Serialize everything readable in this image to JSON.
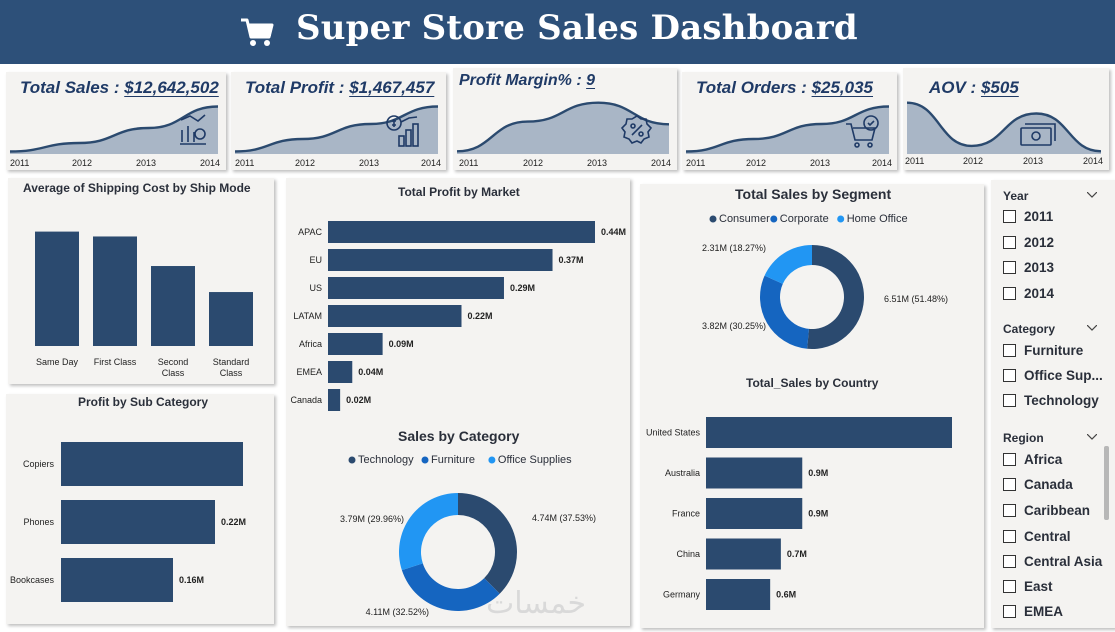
{
  "header": {
    "title": "Super Store Sales Dashboard"
  },
  "kpis": [
    {
      "label": "Total Sales : ",
      "value": "$12,642,502",
      "icon": "money-growth-icon",
      "years": [
        "2011",
        "2012",
        "2013",
        "2014"
      ],
      "trend": [
        0.05,
        0.22,
        0.52,
        0.95
      ]
    },
    {
      "label": "Total Profit : ",
      "value": "$1,467,457",
      "icon": "profit-chart-icon",
      "years": [
        "2011",
        "2012",
        "2013",
        "2014"
      ],
      "trend": [
        0.05,
        0.3,
        0.6,
        0.95
      ]
    },
    {
      "label": "Profit Margin% : ",
      "value": "9",
      "icon": "percent-badge-icon",
      "years": [
        "2011",
        "2012",
        "2013",
        "2014"
      ],
      "trend": [
        0.05,
        0.6,
        0.95,
        0.55
      ]
    },
    {
      "label": "Total Orders : ",
      "value": "$25,035",
      "icon": "cart-check-icon",
      "years": [
        "2011",
        "2012",
        "2013",
        "2014"
      ],
      "trend": [
        0.05,
        0.3,
        0.6,
        0.95
      ]
    },
    {
      "label": "AOV : ",
      "value": "$505",
      "icon": "cash-icon",
      "years": [
        "2011",
        "2012",
        "2013",
        "2014"
      ],
      "trend": [
        0.95,
        0.15,
        0.75,
        0.05
      ]
    }
  ],
  "chart_data": [
    {
      "id": "shipping",
      "type": "bar",
      "title": "Average of Shipping Cost by Ship Mode",
      "categories": [
        "Same Day",
        "First Class",
        "Second Class",
        "Standard Class"
      ],
      "category_lines": [
        [
          "Same Day"
        ],
        [
          "First Class"
        ],
        [
          "Second",
          "Class"
        ],
        [
          "Standard",
          "Class"
        ]
      ],
      "values": [
        42.2,
        40.4,
        29.5,
        19.9
      ],
      "ylim": [
        0,
        45
      ]
    },
    {
      "id": "profit_market",
      "type": "bar",
      "orientation": "horizontal",
      "title": "Total Profit by Market",
      "categories": [
        "APAC",
        "EU",
        "US",
        "LATAM",
        "Africa",
        "EMEA",
        "Canada"
      ],
      "values": [
        0.44,
        0.37,
        0.29,
        0.22,
        0.09,
        0.04,
        0.02
      ],
      "labels": [
        "0.44M",
        "0.37M",
        "0.29M",
        "0.22M",
        "0.09M",
        "0.04M",
        "0.02M"
      ],
      "xlim": [
        0,
        0.44
      ]
    },
    {
      "id": "segment",
      "type": "pie",
      "title": "Total Sales by Segment",
      "legend": [
        "Consumer",
        "Corporate",
        "Home Office"
      ],
      "values": [
        6.51,
        3.82,
        2.31
      ],
      "labels": [
        "6.51M (51.48%)",
        "3.82M (30.25%)",
        "2.31M (18.27%)"
      ],
      "colors": [
        "#2b4a6f",
        "#1565c0",
        "#2196f3"
      ]
    },
    {
      "id": "category",
      "type": "pie",
      "title": "Sales by Category",
      "legend": [
        "Technology",
        "Furniture",
        "Office Supplies"
      ],
      "values": [
        4.74,
        4.11,
        3.79
      ],
      "labels": [
        "4.74M (37.53%)",
        "4.11M (32.52%)",
        "3.79M (29.96%)"
      ],
      "colors": [
        "#2b4a6f",
        "#1565c0",
        "#2196f3"
      ]
    },
    {
      "id": "subcategory",
      "type": "bar",
      "orientation": "horizontal",
      "title": "Profit by Sub Category",
      "categories": [
        "Copiers",
        "Phones",
        "Bookcases"
      ],
      "values": [
        0.26,
        0.22,
        0.16
      ],
      "labels": [
        "",
        "0.22M",
        "0.16M"
      ],
      "xlim": [
        0,
        0.26
      ]
    },
    {
      "id": "country",
      "type": "bar",
      "orientation": "horizontal",
      "title": "Total_Sales by Country",
      "categories": [
        "United States",
        "Australia",
        "France",
        "China",
        "Germany"
      ],
      "values": [
        2.3,
        0.9,
        0.9,
        0.7,
        0.6
      ],
      "labels": [
        "",
        "0.9M",
        "0.9M",
        "0.7M",
        "0.6M"
      ],
      "xlim": [
        0,
        2.3
      ]
    }
  ],
  "slicers": {
    "year": {
      "title": "Year",
      "items": [
        "2011",
        "2012",
        "2013",
        "2014"
      ]
    },
    "category": {
      "title": "Category",
      "items": [
        "Furniture",
        "Office Sup...",
        "Technology"
      ]
    },
    "region": {
      "title": "Region",
      "items": [
        "Africa",
        "Canada",
        "Caribbean",
        "Central",
        "Central Asia",
        "East",
        "EMEA"
      ]
    }
  },
  "watermark": "خمسات",
  "colors": {
    "header": "#2d5079",
    "bar": "#2b4a6f",
    "panel": "#f4f3f1"
  }
}
